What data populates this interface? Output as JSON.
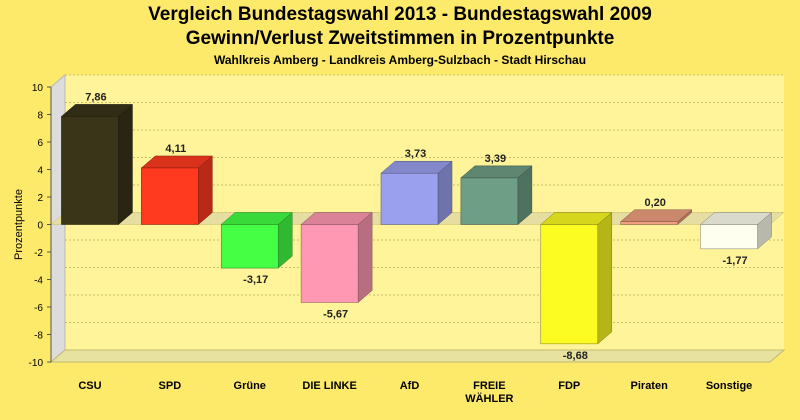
{
  "title": "Vergleich Bundestagswahl 2013 - Bundestagswahl 2009",
  "subtitle": "Gewinn/Verlust Zweitstimmen in Prozentpunkte",
  "subsubtitle": "Wahlkreis Amberg - Landkreis Amberg-Sulzbach - Stadt Hirschau",
  "chart_data": {
    "type": "bar",
    "title": "Vergleich Bundestagswahl 2013 - Bundestagswahl 2009",
    "subtitle": "Gewinn/Verlust Zweitstimmen in Prozentpunkte",
    "xlabel": "",
    "ylabel": "Prozentpunkte",
    "ylim": [
      -10,
      10
    ],
    "yticks": [
      10,
      8,
      6,
      4,
      2,
      0,
      -2,
      -4,
      -6,
      -8,
      -10
    ],
    "ytick_labels": [
      "10",
      "8",
      "6",
      "4",
      "2",
      "0",
      "-2",
      "-4",
      "-6",
      "-8",
      "-10"
    ],
    "grid": true,
    "legend": "none",
    "categories": [
      {
        "label": "CSU",
        "lines": [
          "CSU"
        ]
      },
      {
        "label": "SPD",
        "lines": [
          "SPD"
        ]
      },
      {
        "label": "Grüne",
        "lines": [
          "Grüne"
        ]
      },
      {
        "label": "DIE LINKE",
        "lines": [
          "DIE LINKE"
        ]
      },
      {
        "label": "AfD",
        "lines": [
          "AfD"
        ]
      },
      {
        "label": "FREIE WÄHLER",
        "lines": [
          "FREIE",
          "WÄHLER"
        ]
      },
      {
        "label": "FDP",
        "lines": [
          "FDP"
        ]
      },
      {
        "label": "Piraten",
        "lines": [
          "Piraten"
        ]
      },
      {
        "label": "Sonstige",
        "lines": [
          "Sonstige"
        ]
      }
    ],
    "values": [
      7.86,
      4.11,
      -3.17,
      -5.67,
      3.73,
      3.39,
      -8.68,
      0.2,
      -1.77
    ],
    "value_labels": [
      "7,86",
      "4,11",
      "-3,17",
      "-5,67",
      "3,73",
      "3,39",
      "-8,68",
      "0,20",
      "-1,77"
    ],
    "colors": [
      "#3a3419",
      "#ff3a1e",
      "#44ff44",
      "#ff99b3",
      "#9aa0ee",
      "#6e9e85",
      "#fcfc22",
      "#f0a080",
      "#fffff0"
    ]
  }
}
